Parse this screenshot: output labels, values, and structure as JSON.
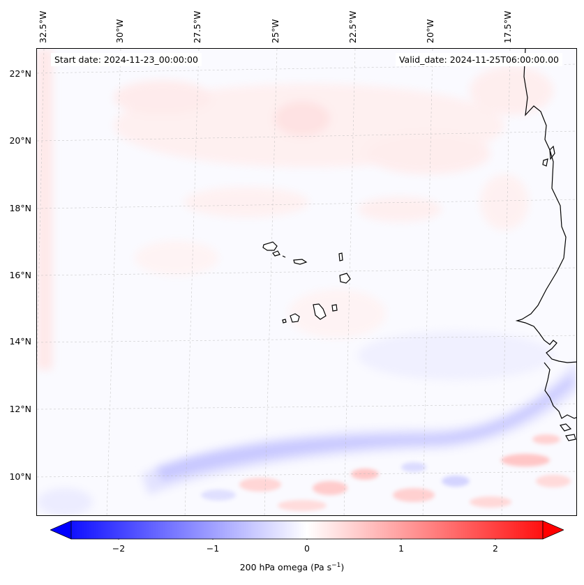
{
  "start_date": "Start date: 2024-11-23_00:00:00",
  "valid_date": "Valid_date: 2024-11-25T06:00:00.00",
  "longitude_labels": [
    "32.5°W",
    "30°W",
    "27.5°W",
    "25°W",
    "22.5°W",
    "20°W",
    "17.5°W"
  ],
  "latitude_labels": [
    "22°N",
    "20°N",
    "18°N",
    "16°N",
    "14°N",
    "12°N",
    "10°N"
  ],
  "colorbar": {
    "ticks": [
      "−2",
      "−1",
      "0",
      "1",
      "2"
    ],
    "label_main": "200 hPa omega (Pa s",
    "label_exp": "−1",
    "label_close": ")",
    "min": -2.6,
    "max": 2.6,
    "low_color": "#0000ff",
    "mid_color": "#ffffff",
    "high_color": "#ff0000"
  },
  "map": {
    "variable": "200 hPa omega",
    "units": "Pa s−1",
    "ocean_color": "#fafaff",
    "coastline_color": "#000000"
  }
}
